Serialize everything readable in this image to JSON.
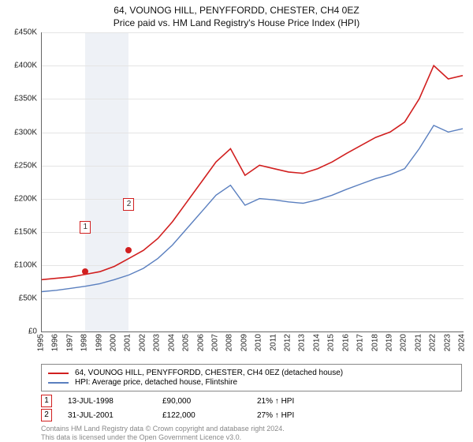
{
  "title_line1": "64, VOUNOG HILL, PENYFFORDD, CHESTER, CH4 0EZ",
  "title_line2": "Price paid vs. HM Land Registry's House Price Index (HPI)",
  "chart": {
    "type": "line",
    "background_color": "#ffffff",
    "grid_color": "#e4e4e4",
    "axis_color": "#666666",
    "text_color": "#222222",
    "y": {
      "min": 0,
      "max": 450000,
      "tick_step": 50000,
      "tick_labels": [
        "£0",
        "£50K",
        "£100K",
        "£150K",
        "£200K",
        "£250K",
        "£300K",
        "£350K",
        "£400K",
        "£450K"
      ],
      "label_fontsize": 10
    },
    "x": {
      "years": [
        1995,
        1996,
        1997,
        1998,
        1999,
        2000,
        2001,
        2002,
        2003,
        2004,
        2005,
        2006,
        2007,
        2008,
        2009,
        2010,
        2011,
        2012,
        2013,
        2014,
        2015,
        2016,
        2017,
        2018,
        2019,
        2020,
        2021,
        2022,
        2023,
        2024
      ],
      "label_fontsize": 10
    },
    "highlight_band": {
      "from_year": 1998,
      "to_year": 2001,
      "color": "#eef1f6"
    },
    "series": [
      {
        "id": "property",
        "label": "64, VOUNOG HILL, PENYFFORDD, CHESTER, CH4 0EZ (detached house)",
        "color": "#d11f1f",
        "line_width": 1.6,
        "values": [
          78000,
          80000,
          82000,
          86000,
          90000,
          98000,
          110000,
          122000,
          140000,
          165000,
          195000,
          225000,
          255000,
          275000,
          235000,
          250000,
          245000,
          240000,
          238000,
          245000,
          255000,
          268000,
          280000,
          292000,
          300000,
          315000,
          350000,
          400000,
          380000,
          385000
        ]
      },
      {
        "id": "hpi",
        "label": "HPI: Average price, detached house, Flintshire",
        "color": "#5a7fbf",
        "line_width": 1.4,
        "values": [
          60000,
          62000,
          65000,
          68000,
          72000,
          78000,
          85000,
          95000,
          110000,
          130000,
          155000,
          180000,
          205000,
          220000,
          190000,
          200000,
          198000,
          195000,
          193000,
          198000,
          205000,
          214000,
          222000,
          230000,
          236000,
          245000,
          275000,
          310000,
          300000,
          305000
        ]
      }
    ],
    "markers": [
      {
        "id": "1",
        "box_color": "#d11f1f",
        "dot_color": "#d11f1f",
        "year": 1998,
        "value": 90000,
        "box_value": 95000
      },
      {
        "id": "2",
        "box_color": "#d11f1f",
        "dot_color": "#d11f1f",
        "year": 2001,
        "value": 122000,
        "box_value": 130000
      }
    ]
  },
  "legend_items": [
    {
      "color": "#d11f1f",
      "label": "64, VOUNOG HILL, PENYFFORDD, CHESTER, CH4 0EZ (detached house)"
    },
    {
      "color": "#5a7fbf",
      "label": "HPI: Average price, detached house, Flintshire"
    }
  ],
  "sale_events": [
    {
      "id": "1",
      "box_color": "#d11f1f",
      "date": "13-JUL-1998",
      "price": "£90,000",
      "delta": "21% ↑ HPI"
    },
    {
      "id": "2",
      "box_color": "#d11f1f",
      "date": "31-JUL-2001",
      "price": "£122,000",
      "delta": "27% ↑ HPI"
    }
  ],
  "footer_line1": "Contains HM Land Registry data © Crown copyright and database right 2024.",
  "footer_line2": "This data is licensed under the Open Government Licence v3.0."
}
